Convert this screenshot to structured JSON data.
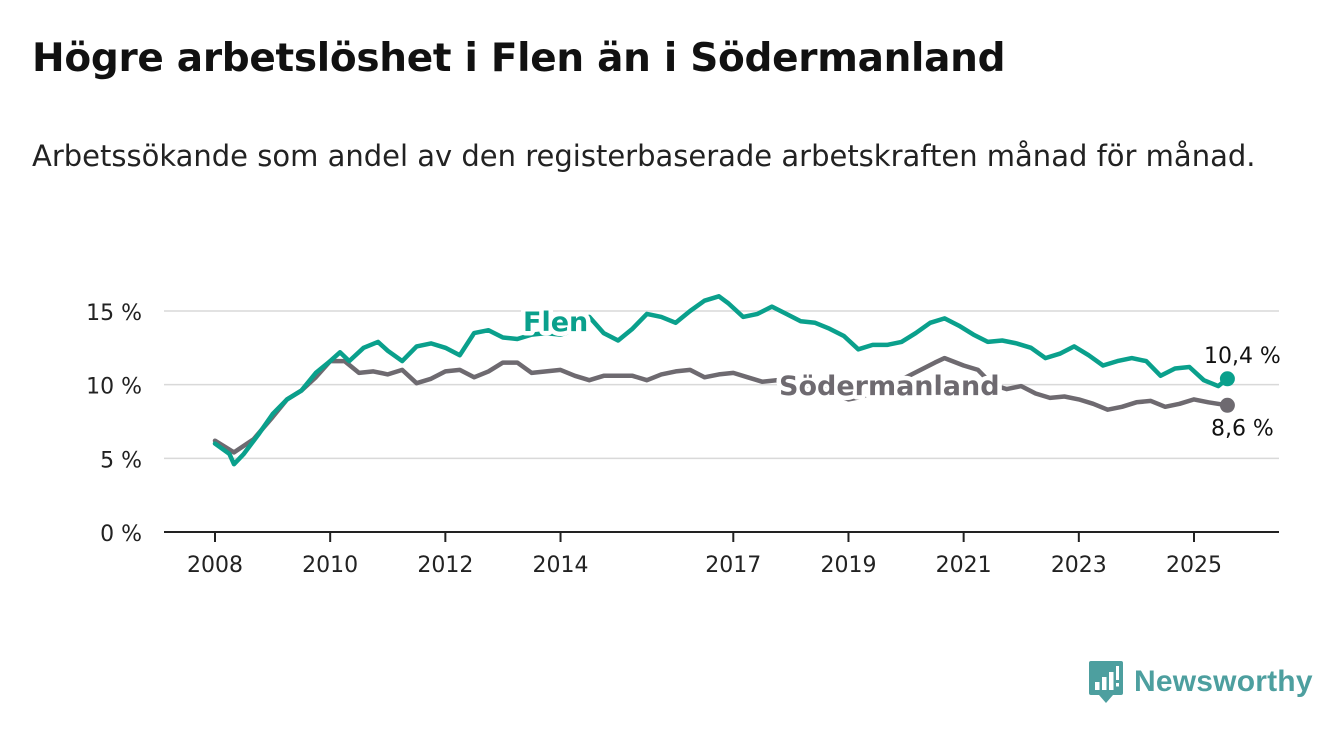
{
  "title": "Högre arbetslöshet i Flen än i Södermanland",
  "subtitle": "Arbetssökande som andel av den registerbaserade arbetskraften månad för månad.",
  "brand": {
    "name": "Newsworthy",
    "icon": "bar-chart-logo-icon"
  },
  "colors": {
    "flen": "#0aa08c",
    "sodermanland": "#6e6a70",
    "grid": "#d9d9d9",
    "axis": "#222222",
    "brand": "#4d9f9f"
  },
  "chart_data": {
    "type": "line",
    "xlabel": "",
    "ylabel": "",
    "xlim": [
      2008.0,
      2025.75
    ],
    "ylim": [
      0,
      16
    ],
    "x_ticks": [
      2008,
      2010,
      2012,
      2014,
      2017,
      2019,
      2021,
      2023,
      2025
    ],
    "y_ticks": [
      0,
      5,
      10,
      15
    ],
    "y_tick_labels": [
      "0 %",
      "5 %",
      "10 %",
      "15 %"
    ],
    "grid": true,
    "legend": "inline labels",
    "series": [
      {
        "name": "Flen",
        "x": [
          2008.0,
          2008.25,
          2008.33,
          2008.5,
          2008.75,
          2009.0,
          2009.25,
          2009.5,
          2009.75,
          2010.0,
          2010.17,
          2010.33,
          2010.58,
          2010.83,
          2011.0,
          2011.25,
          2011.5,
          2011.75,
          2012.0,
          2012.25,
          2012.5,
          2012.75,
          2013.0,
          2013.25,
          2013.5,
          2013.75,
          2014.0,
          2014.25,
          2014.5,
          2014.75,
          2015.0,
          2015.25,
          2015.5,
          2015.75,
          2016.0,
          2016.25,
          2016.5,
          2016.75,
          2016.92,
          2017.17,
          2017.42,
          2017.67,
          2017.92,
          2018.17,
          2018.42,
          2018.67,
          2018.92,
          2019.17,
          2019.42,
          2019.67,
          2019.92,
          2020.17,
          2020.42,
          2020.67,
          2020.92,
          2021.17,
          2021.42,
          2021.67,
          2021.92,
          2022.17,
          2022.42,
          2022.67,
          2022.92,
          2023.17,
          2023.42,
          2023.67,
          2023.92,
          2024.17,
          2024.42,
          2024.67,
          2024.92,
          2025.17,
          2025.42,
          2025.58
        ],
        "values": [
          6.0,
          5.3,
          4.6,
          5.3,
          6.6,
          8.0,
          9.0,
          9.6,
          10.8,
          11.6,
          12.2,
          11.6,
          12.5,
          12.9,
          12.3,
          11.6,
          12.6,
          12.8,
          12.5,
          12.0,
          13.5,
          13.7,
          13.2,
          13.1,
          13.4,
          13.5,
          13.4,
          13.7,
          14.6,
          13.5,
          13.0,
          13.8,
          14.8,
          14.6,
          14.2,
          15.0,
          15.7,
          16.0,
          15.5,
          14.6,
          14.8,
          15.3,
          14.8,
          14.3,
          14.2,
          13.8,
          13.3,
          12.4,
          12.7,
          12.7,
          12.9,
          13.5,
          14.2,
          14.5,
          14.0,
          13.4,
          12.9,
          13.0,
          12.8,
          12.5,
          11.8,
          12.1,
          12.6,
          12.0,
          11.3,
          11.6,
          11.8,
          11.6,
          10.6,
          11.1,
          11.2,
          10.3,
          9.9,
          10.4
        ],
        "end_label": "10,4 %"
      },
      {
        "name": "Södermanland",
        "x": [
          2008.0,
          2008.33,
          2008.67,
          2009.0,
          2009.25,
          2009.5,
          2009.75,
          2010.0,
          2010.25,
          2010.5,
          2010.75,
          2011.0,
          2011.25,
          2011.5,
          2011.75,
          2012.0,
          2012.25,
          2012.5,
          2012.75,
          2013.0,
          2013.25,
          2013.5,
          2013.75,
          2014.0,
          2014.25,
          2014.5,
          2014.75,
          2015.0,
          2015.25,
          2015.5,
          2015.75,
          2016.0,
          2016.25,
          2016.5,
          2016.75,
          2017.0,
          2017.25,
          2017.5,
          2017.75,
          2018.0,
          2018.5,
          2019.0,
          2019.25,
          2019.5,
          2020.0,
          2020.5,
          2020.67,
          2021.0,
          2021.25,
          2021.5,
          2021.75,
          2022.0,
          2022.25,
          2022.5,
          2022.75,
          2023.0,
          2023.25,
          2023.5,
          2023.75,
          2024.0,
          2024.25,
          2024.5,
          2024.75,
          2025.0,
          2025.25,
          2025.58
        ],
        "values": [
          6.2,
          5.4,
          6.3,
          7.8,
          9.0,
          9.6,
          10.5,
          11.6,
          11.6,
          10.8,
          10.9,
          10.7,
          11.0,
          10.1,
          10.4,
          10.9,
          11.0,
          10.5,
          10.9,
          11.5,
          11.5,
          10.8,
          10.9,
          11.0,
          10.6,
          10.3,
          10.6,
          10.6,
          10.6,
          10.3,
          10.7,
          10.9,
          11.0,
          10.5,
          10.7,
          10.8,
          10.5,
          10.2,
          10.3,
          10.0,
          9.8,
          9.0,
          9.2,
          9.6,
          10.5,
          11.5,
          11.8,
          11.3,
          11.0,
          10.0,
          9.7,
          9.9,
          9.4,
          9.1,
          9.2,
          9.0,
          8.7,
          8.3,
          8.5,
          8.8,
          8.9,
          8.5,
          8.7,
          9.0,
          8.8,
          8.6
        ],
        "end_label": "8,6 %"
      }
    ]
  }
}
